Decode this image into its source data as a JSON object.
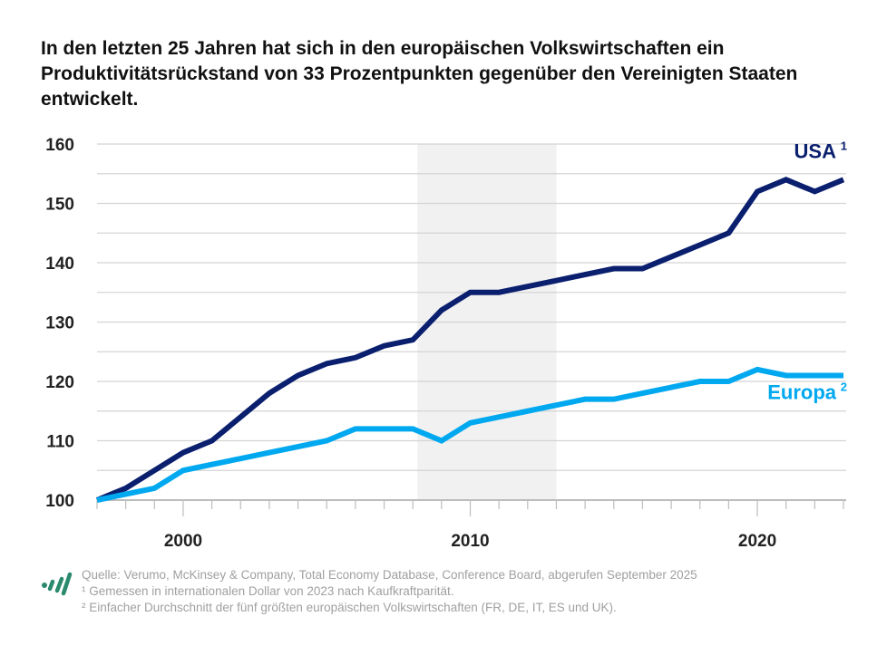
{
  "chart_data": {
    "type": "line",
    "title": "In den letzten 25 Jahren hat sich in den europäischen Volkswirtschaften ein Produktivitätsrückstand von 33 Prozentpunkten gegenüber den Vereinigten Staaten entwickelt.",
    "xlabel": "",
    "ylabel": "",
    "x": [
      1997,
      1998,
      1999,
      2000,
      2001,
      2002,
      2003,
      2004,
      2005,
      2006,
      2007,
      2008,
      2009,
      2010,
      2011,
      2012,
      2013,
      2014,
      2015,
      2016,
      2017,
      2018,
      2019,
      2020,
      2021,
      2022,
      2023
    ],
    "xlim": [
      1997,
      2023
    ],
    "ylim": [
      100,
      160
    ],
    "x_ticks": [
      "2000",
      "2010",
      "2020"
    ],
    "y_ticks": [
      "100",
      "110",
      "120",
      "130",
      "140",
      "150",
      "160"
    ],
    "grid": true,
    "shaded_period": [
      2008,
      2013
    ],
    "series": [
      {
        "name": "USA",
        "sup": "1",
        "color": "#0a1f6e",
        "values": [
          100,
          102,
          105,
          108,
          110,
          114,
          118,
          121,
          123,
          124,
          126,
          127,
          132,
          135,
          135,
          136,
          137,
          138,
          139,
          139,
          141,
          143,
          145,
          152,
          154,
          152,
          154
        ]
      },
      {
        "name": "Europa",
        "sup": "2",
        "color": "#00a8f0",
        "values": [
          100,
          101,
          102,
          105,
          106,
          107,
          108,
          109,
          110,
          112,
          112,
          112,
          110,
          113,
          114,
          115,
          116,
          117,
          117,
          118,
          119,
          120,
          120,
          122,
          121,
          121,
          121
        ]
      }
    ]
  },
  "footer": {
    "source": "Quelle: Verumo, McKinsey & Company, Total Economy Database, Conference Board, abgerufen September 2025",
    "note1": "¹ Gemessen in internationalen Dollar von 2023 nach Kaufkraftparität.",
    "note2": "² Einfacher Durchschnitt der fünf größten europäischen Volkswirtschaften (FR, DE, IT, ES und UK)."
  },
  "logo_color": "#2a8a6e"
}
